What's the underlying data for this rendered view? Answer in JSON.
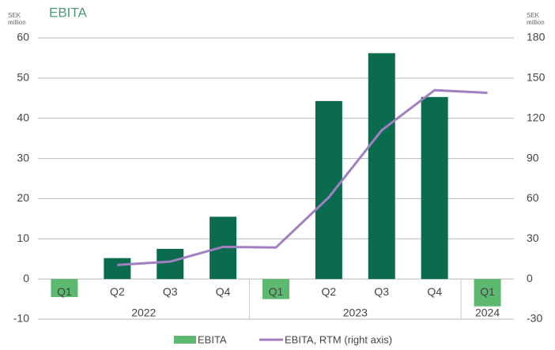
{
  "chart_data": {
    "type": "bar",
    "title": "EBITA",
    "y_label": "SEK million",
    "y2_label": "SEK million",
    "categories": [
      "Q1",
      "Q2",
      "Q3",
      "Q4",
      "Q1",
      "Q2",
      "Q3",
      "Q4",
      "Q1"
    ],
    "groups": [
      {
        "label": "2022",
        "size": 4
      },
      {
        "label": "2023",
        "size": 4
      },
      {
        "label": "2024",
        "size": 1
      }
    ],
    "series": [
      {
        "name": "EBITA",
        "type": "bar",
        "color": "#5cb96f",
        "colors": [
          "#5cb96f",
          "#0b6b4f",
          "#0b6b4f",
          "#0b6b4f",
          "#5cb96f",
          "#0b6b4f",
          "#0b6b4f",
          "#0b6b4f",
          "#5cb96f"
        ],
        "values": [
          -4.5,
          5.2,
          7.5,
          15.5,
          -5,
          44.3,
          56.2,
          45.3,
          -6.8
        ]
      },
      {
        "name": "EBITA, RTM (right axis)",
        "type": "line",
        "axis": "y2",
        "color": "#a17fc1",
        "values": [
          null,
          10.5,
          13,
          24,
          23.5,
          61,
          111,
          141,
          139
        ]
      }
    ],
    "ylim": [
      -10,
      60
    ],
    "yticks": [
      -10,
      0,
      10,
      20,
      30,
      40,
      50,
      60
    ],
    "y2lim": [
      -30,
      180
    ],
    "y2ticks": [
      -30,
      0,
      30,
      60,
      90,
      120,
      150,
      180
    ],
    "grid": true,
    "legend": "bottom"
  }
}
